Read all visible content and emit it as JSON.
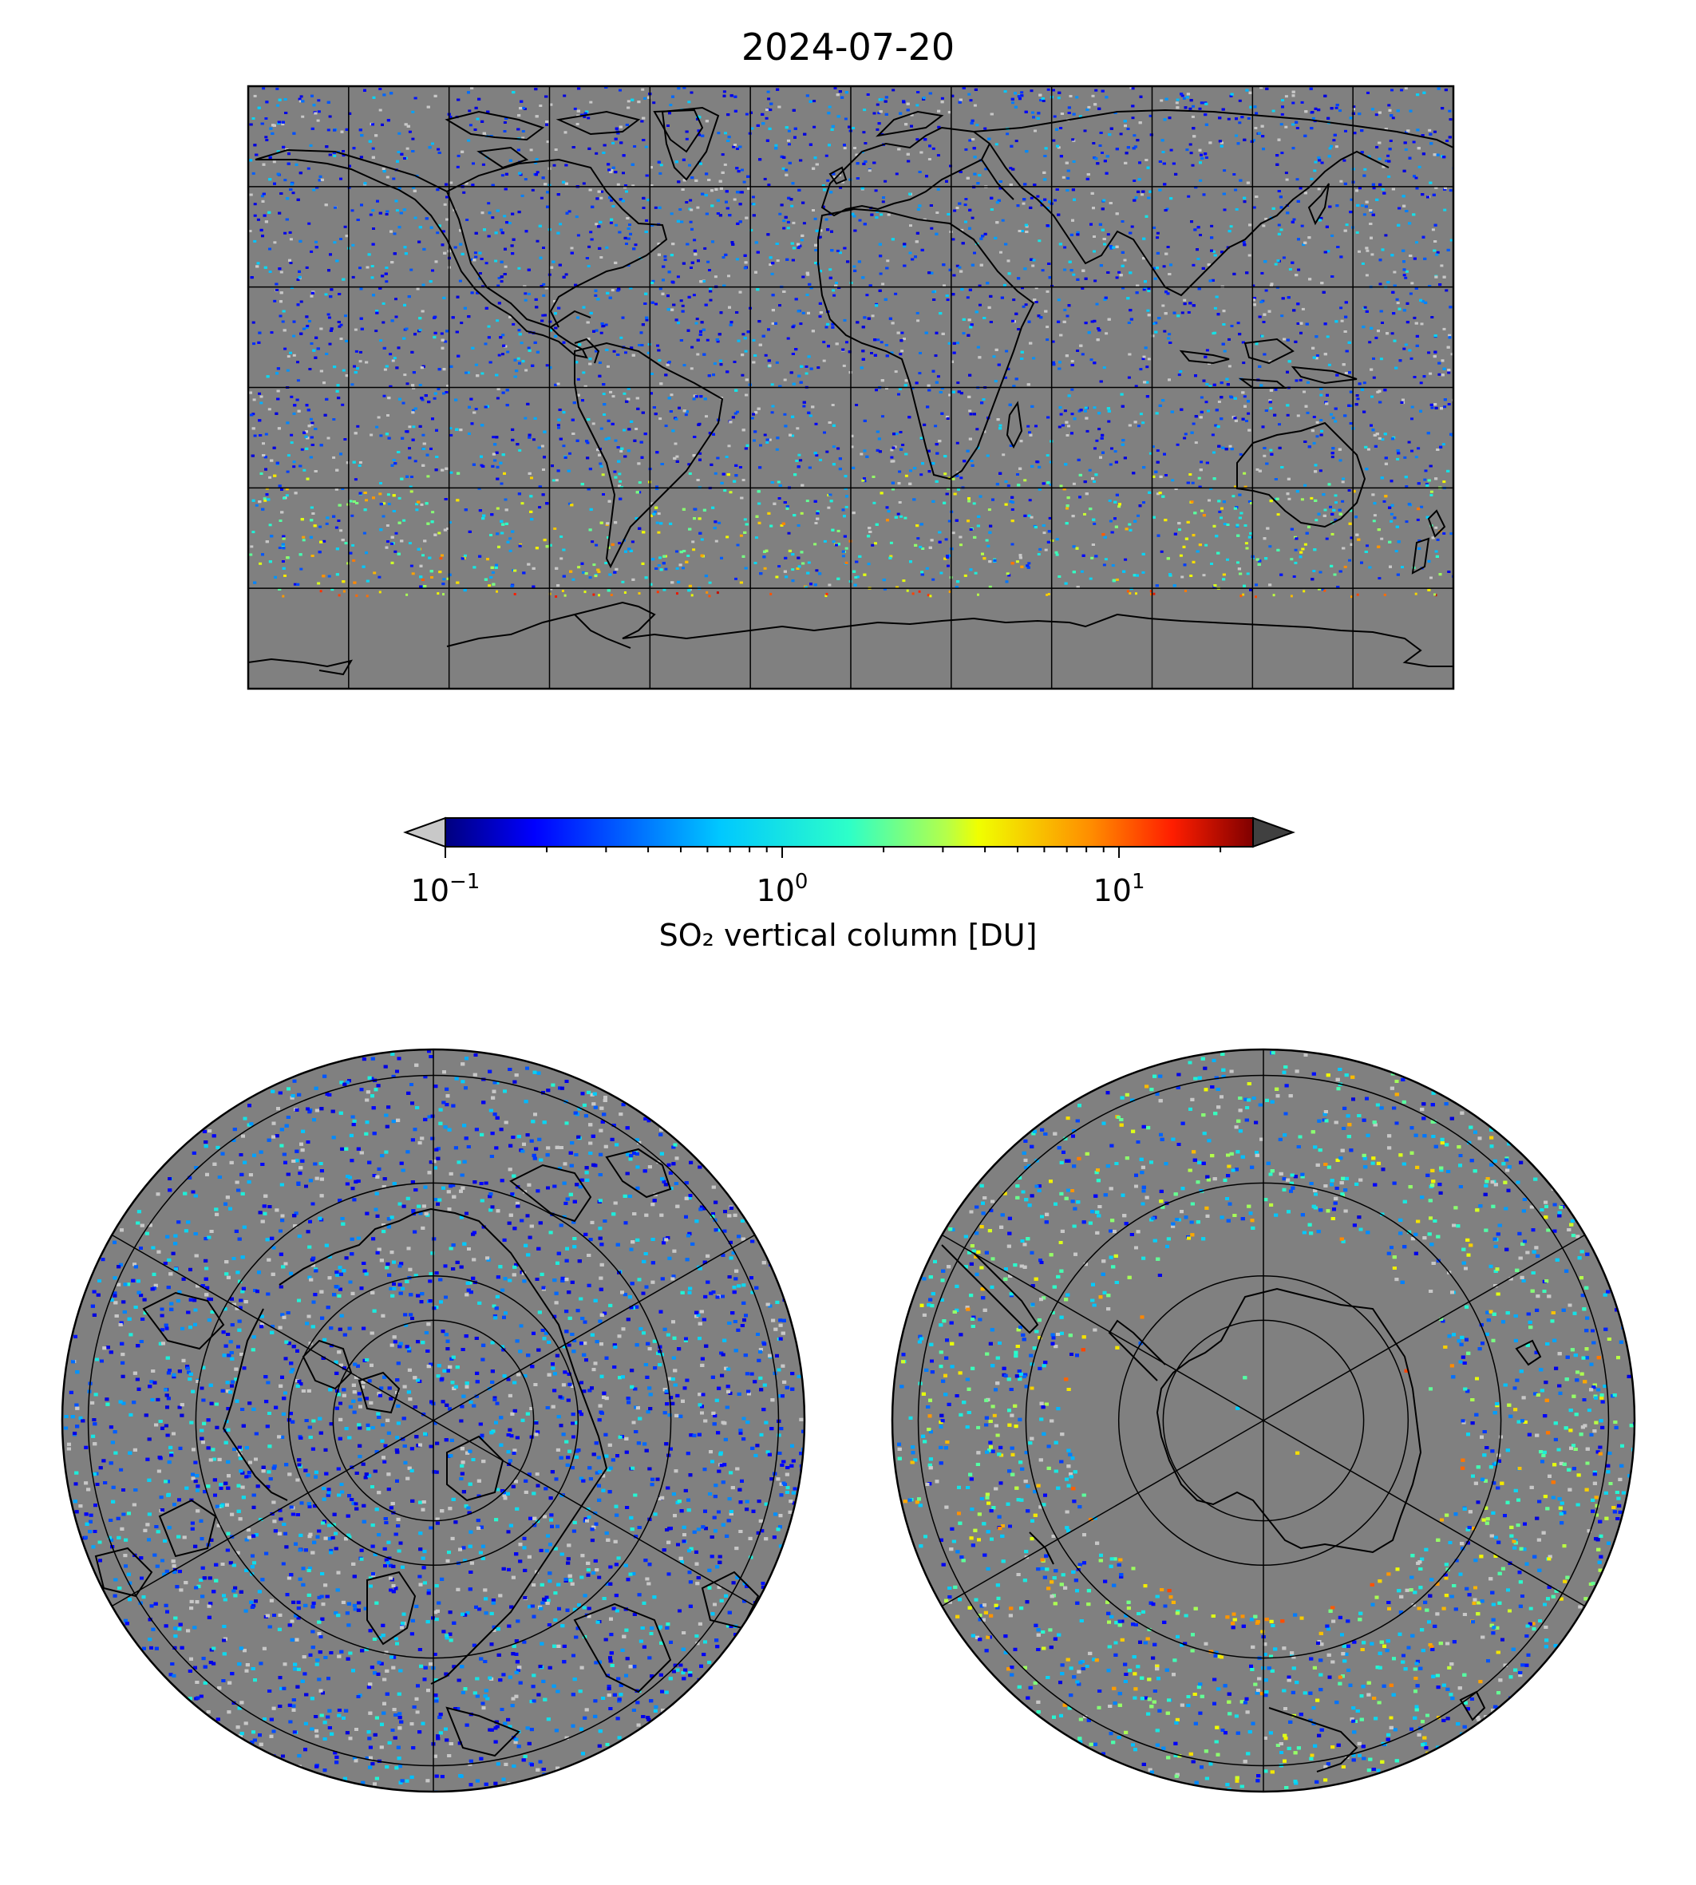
{
  "title": "2024-07-20",
  "colorbar": {
    "label": "SO₂ vertical column [DU]",
    "scale": "log",
    "vmin": 0.1,
    "vmax": 25,
    "colormap": "jet",
    "under_color": "#c8c8c8",
    "over_color": "#404040",
    "ticks": [
      {
        "value": 0.1,
        "base": "10",
        "exp": "−1"
      },
      {
        "value": 1,
        "base": "10",
        "exp": "0"
      },
      {
        "value": 10,
        "base": "10",
        "exp": "1"
      }
    ]
  },
  "maps": [
    {
      "name": "global-map",
      "projection": "plate-carree",
      "lon_range": [
        -180,
        180
      ],
      "lat_range": [
        -90,
        90
      ],
      "gridline_spacing_deg": 30
    },
    {
      "name": "north-polar-map",
      "projection": "polar-stereographic-north",
      "boundary_lat": 30
    },
    {
      "name": "south-polar-map",
      "projection": "polar-stereographic-south",
      "boundary_lat": -30
    }
  ],
  "colors": {
    "land_no_data": "#808080",
    "background": "#ffffff",
    "coastline": "#000000",
    "gridline": "#000000"
  }
}
